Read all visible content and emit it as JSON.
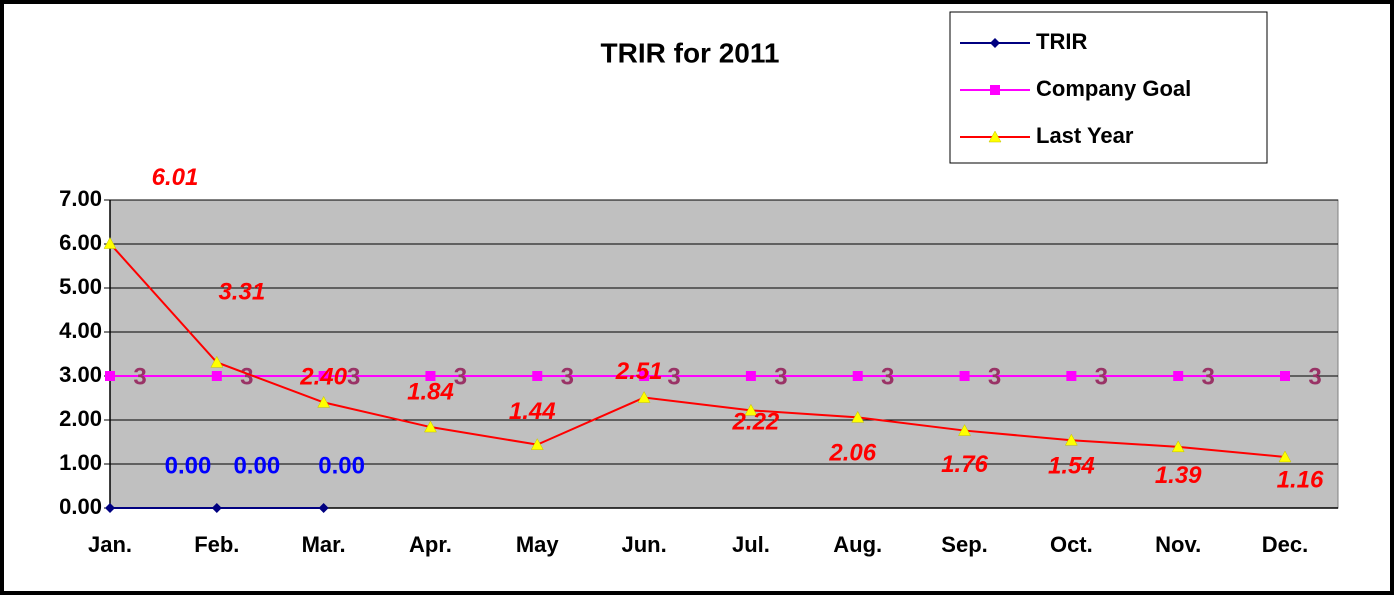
{
  "chart_data": {
    "type": "line",
    "title": "TRIR for 2011",
    "categories": [
      "Jan.",
      "Feb.",
      "Mar.",
      "Apr.",
      "May",
      "Jun.",
      "Jul.",
      "Aug.",
      "Sep.",
      "Oct.",
      "Nov.",
      "Dec."
    ],
    "series": [
      {
        "name": "TRIR",
        "color": "#000080",
        "marker": "diamond",
        "marker_color": "#000080",
        "label_color": "#0000ff",
        "values": [
          0,
          0,
          0,
          null,
          null,
          null,
          null,
          null,
          null,
          null,
          null,
          null
        ],
        "value_labels": [
          "0.00",
          "0.00",
          "0.00",
          null,
          null,
          null,
          null,
          null,
          null,
          null,
          null,
          null
        ]
      },
      {
        "name": "Company Goal",
        "color": "#ff00ff",
        "marker": "square",
        "marker_color": "#ff00ff",
        "label_color": "#993366",
        "values": [
          3,
          3,
          3,
          3,
          3,
          3,
          3,
          3,
          3,
          3,
          3,
          3
        ],
        "value_labels": [
          "3",
          "3",
          "3",
          "3",
          "3",
          "3",
          "3",
          "3",
          "3",
          "3",
          "3",
          "3"
        ]
      },
      {
        "name": "Last Year",
        "color": "#ff0000",
        "marker": "triangle",
        "marker_color": "#ffff00",
        "label_color": "#ff0000",
        "values": [
          6.01,
          3.31,
          2.4,
          1.84,
          1.44,
          2.51,
          2.22,
          2.06,
          1.76,
          1.54,
          1.39,
          1.16
        ],
        "value_labels": [
          "6.01",
          "3.31",
          "2.40",
          "1.84",
          "1.44",
          "2.51",
          "2.22",
          "2.06",
          "1.76",
          "1.54",
          "1.39",
          "1.16"
        ]
      }
    ],
    "ylim": [
      0,
      7
    ],
    "yticks": [
      {
        "value": 0,
        "label": "0.00"
      },
      {
        "value": 1,
        "label": "1.00"
      },
      {
        "value": 2,
        "label": "2.00"
      },
      {
        "value": 3,
        "label": "3.00"
      },
      {
        "value": 4,
        "label": "4.00"
      },
      {
        "value": 5,
        "label": "5.00"
      },
      {
        "value": 6,
        "label": "6.00"
      },
      {
        "value": 7,
        "label": "7.00"
      }
    ],
    "grid": true,
    "plot_background": "#c0c0c0",
    "legend": "top-right"
  }
}
